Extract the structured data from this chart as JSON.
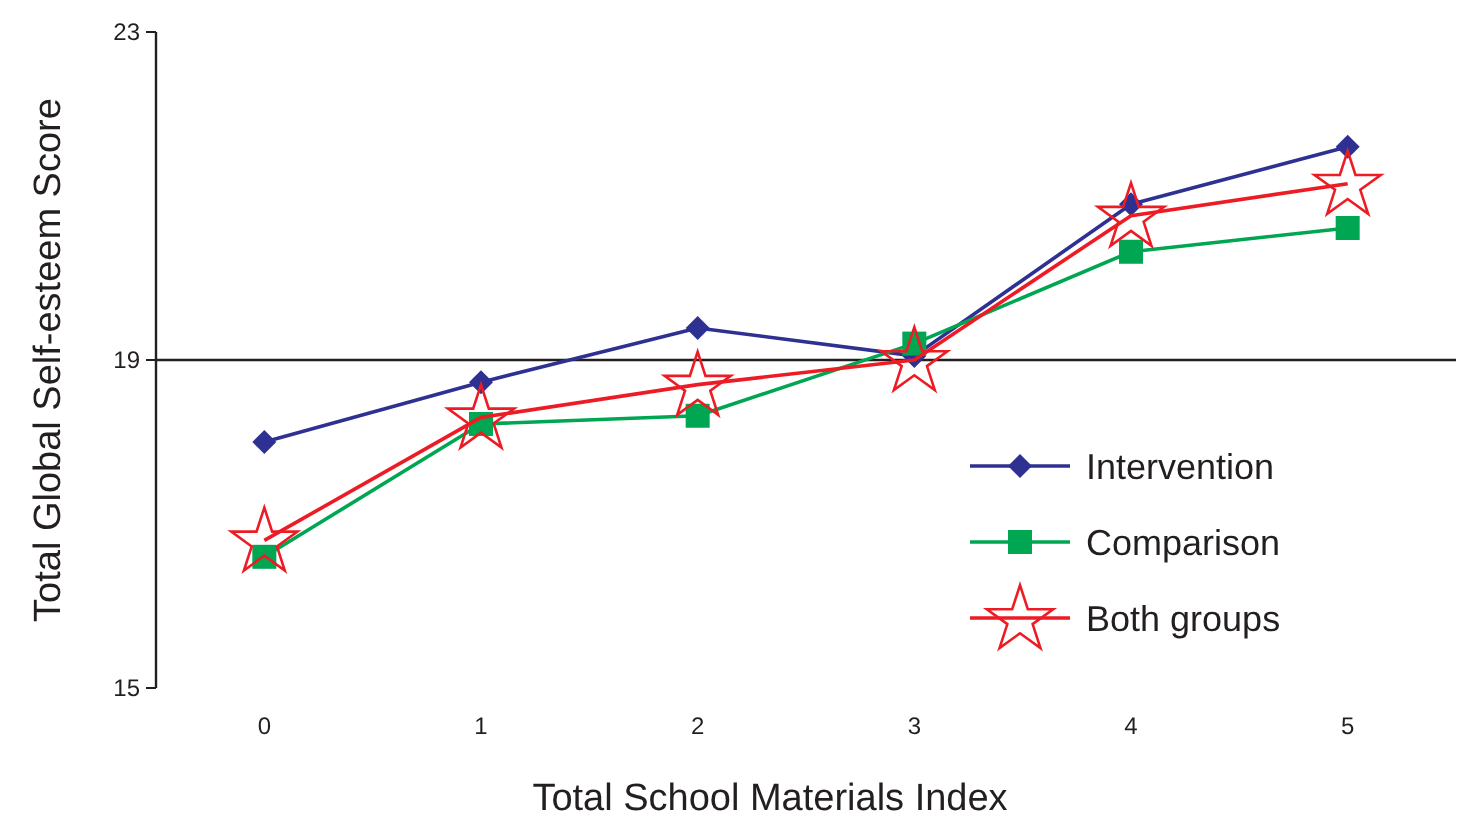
{
  "chart_data": {
    "type": "line",
    "xlabel": "Total School Materials Index",
    "ylabel": "Total Global Self-esteem Score",
    "categories": [
      "0",
      "1",
      "2",
      "3",
      "4",
      "5"
    ],
    "ylim": [
      15,
      23
    ],
    "yticks": [
      15,
      19,
      23
    ],
    "series": [
      {
        "name": "Intervention",
        "color": "#2e3192",
        "marker": "diamond",
        "values": [
          18.0,
          18.73,
          19.39,
          19.05,
          20.9,
          21.6
        ]
      },
      {
        "name": "Comparison",
        "color": "#00a651",
        "marker": "square",
        "values": [
          16.6,
          18.22,
          18.32,
          19.2,
          20.32,
          20.61
        ]
      },
      {
        "name": "Both groups",
        "color": "#ed1c24",
        "marker": "star",
        "values": [
          16.8,
          18.3,
          18.7,
          19.0,
          20.76,
          21.15
        ]
      }
    ],
    "ref_lines": [
      {
        "axis": "y",
        "value": 19,
        "color": "#231f20"
      }
    ],
    "grid": false,
    "legend": "bottom right",
    "line_style": "solid"
  }
}
